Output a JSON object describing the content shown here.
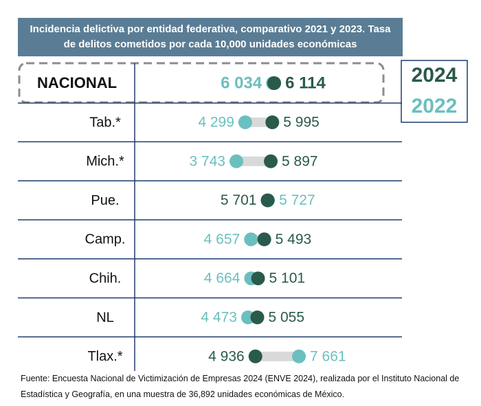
{
  "chart_data": {
    "type": "dumbbell",
    "title": "Incidencia delictiva por entidad federativa, comparativo 2021 y 2023. Tasa de delitos cometidos por cada 10,000 unidades económicas",
    "categories": [
      "NACIONAL",
      "Tab.*",
      "Mich.*",
      "Pue.",
      "Camp.",
      "Chih.",
      "NL",
      "Tlax.*"
    ],
    "series": [
      {
        "name": "2022",
        "color": "#6bbfbf",
        "values": [
          6034,
          4299,
          3743,
          5727,
          4657,
          4664,
          4473,
          7661
        ],
        "value_labels": [
          "6 034",
          "4 299",
          "3 743",
          "5 727",
          "4 657",
          "4 664",
          "4 473",
          "7 661"
        ]
      },
      {
        "name": "2024",
        "color": "#2a5a4c",
        "values": [
          6114,
          5995,
          5897,
          5701,
          5493,
          5101,
          5055,
          4936
        ],
        "value_labels": [
          "6 114",
          "5 995",
          "5 897",
          "5 701",
          "5 493",
          "5 101",
          "5 055",
          "4 936"
        ]
      }
    ],
    "source": "Fuente: Encuesta Nacional de Victimización de Empresas 2024 (ENVE 2024), realizada por el Instituto Nacional de Estadística y Geografía, en una muestra de 36,892 unidades económicas de México."
  }
}
